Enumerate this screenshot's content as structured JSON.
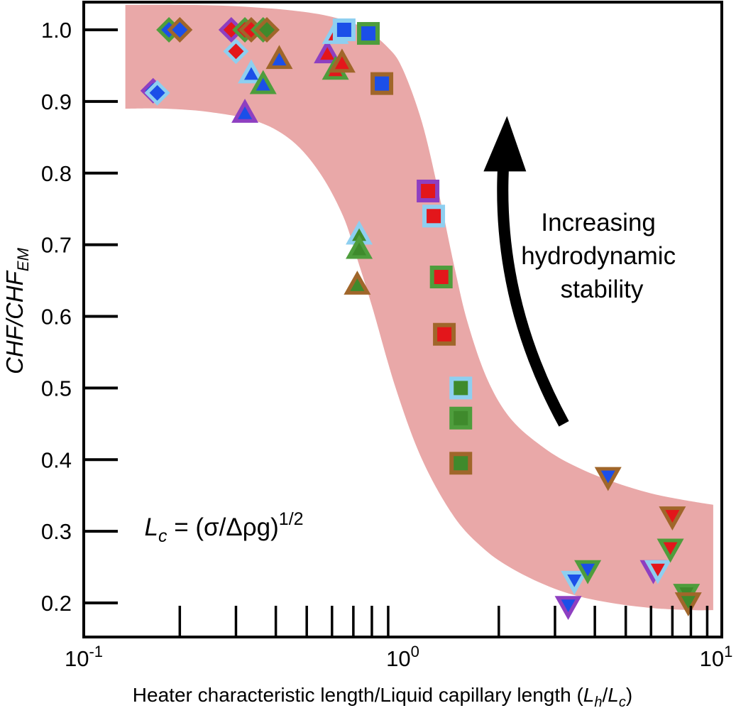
{
  "chart_data": {
    "type": "scatter",
    "x_scale": "log",
    "xlim": [
      0.1,
      10
    ],
    "ylim": [
      0.16,
      1.04
    ],
    "grid": false,
    "legend": "none",
    "colors": {
      "band": "#e9a8a8",
      "purple": "#8e3fc1",
      "lightblue": "#8ecff0",
      "green": "#4e9d3c",
      "brown": "#a0662a",
      "red": "#e3161b",
      "blue": "#1b4fe8",
      "darkgreen": "#3f8a2c"
    },
    "xlabel": {
      "text": "Heater characteristic length/Liquid capillary length (",
      "var1": "L",
      "sub1": "h",
      "slash": "/",
      "var2": "L",
      "sub2": "c",
      "close": ")"
    },
    "ylabel": {
      "part1": "CHF",
      "slash": "/",
      "part2": "CHF",
      "sub": "EM"
    },
    "x_tick_labels": [
      {
        "value": 0.1,
        "base": "10",
        "exp": "-1"
      },
      {
        "value": 1,
        "base": "10",
        "exp": "0"
      },
      {
        "value": 10,
        "base": "10",
        "exp": "1"
      }
    ],
    "x_minor_ticks": [
      0.2,
      0.3,
      0.4,
      0.5,
      0.6,
      0.7,
      0.8,
      0.9,
      2,
      3,
      4,
      5,
      6,
      7,
      8,
      9
    ],
    "y_ticks": [
      0.2,
      0.3,
      0.4,
      0.5,
      0.6,
      0.7,
      0.8,
      0.9,
      1.0
    ],
    "y_tick_labels": [
      "0.2",
      "0.3",
      "0.4",
      "0.5",
      "0.6",
      "0.7",
      "0.8",
      "0.9",
      "1.0"
    ],
    "band": {
      "upper": [
        [
          0.135,
          1.035
        ],
        [
          0.2,
          1.035
        ],
        [
          0.3,
          1.033
        ],
        [
          0.45,
          1.027
        ],
        [
          0.6,
          1.018
        ],
        [
          0.75,
          1.003
        ],
        [
          0.9,
          0.975
        ],
        [
          1.0,
          0.945
        ],
        [
          1.15,
          0.87
        ],
        [
          1.3,
          0.77
        ],
        [
          1.45,
          0.67
        ],
        [
          1.6,
          0.59
        ],
        [
          1.85,
          0.51
        ],
        [
          2.2,
          0.455
        ],
        [
          2.8,
          0.415
        ],
        [
          3.5,
          0.39
        ],
        [
          4.5,
          0.37
        ],
        [
          6,
          0.353
        ],
        [
          8,
          0.342
        ],
        [
          9.4,
          0.337
        ]
      ],
      "lower": [
        [
          9.4,
          0.19
        ],
        [
          8,
          0.19
        ],
        [
          6,
          0.193
        ],
        [
          4.5,
          0.2
        ],
        [
          3.5,
          0.21
        ],
        [
          2.8,
          0.225
        ],
        [
          2.2,
          0.248
        ],
        [
          1.8,
          0.275
        ],
        [
          1.45,
          0.32
        ],
        [
          1.15,
          0.4
        ],
        [
          0.95,
          0.5
        ],
        [
          0.8,
          0.615
        ],
        [
          0.72,
          0.68
        ],
        [
          0.65,
          0.74
        ],
        [
          0.55,
          0.8
        ],
        [
          0.45,
          0.845
        ],
        [
          0.35,
          0.872
        ],
        [
          0.25,
          0.885
        ],
        [
          0.18,
          0.89
        ],
        [
          0.135,
          0.89
        ]
      ]
    },
    "points": [
      {
        "x": 0.165,
        "y": 0.915,
        "shape": "diamond",
        "outline": "purple",
        "fill": "blue"
      },
      {
        "x": 0.17,
        "y": 0.912,
        "shape": "diamond",
        "outline": "lightblue",
        "fill": "blue"
      },
      {
        "x": 0.185,
        "y": 1.0,
        "shape": "diamond",
        "outline": "green",
        "fill": "blue"
      },
      {
        "x": 0.2,
        "y": 1.0,
        "shape": "diamond",
        "outline": "brown",
        "fill": "blue"
      },
      {
        "x": 0.29,
        "y": 1.0,
        "shape": "diamond",
        "outline": "purple",
        "fill": "red"
      },
      {
        "x": 0.3,
        "y": 0.97,
        "shape": "diamond",
        "outline": "lightblue",
        "fill": "red"
      },
      {
        "x": 0.32,
        "y": 1.0,
        "shape": "diamond",
        "outline": "green",
        "fill": "red"
      },
      {
        "x": 0.335,
        "y": 1.0,
        "shape": "diamond",
        "outline": "brown",
        "fill": "red"
      },
      {
        "x": 0.365,
        "y": 1.0,
        "shape": "diamond",
        "outline": "green",
        "fill": "darkgreen"
      },
      {
        "x": 0.375,
        "y": 1.0,
        "shape": "diamond",
        "outline": "brown",
        "fill": "darkgreen"
      },
      {
        "x": 0.32,
        "y": 0.885,
        "shape": "triangle-up",
        "outline": "purple",
        "fill": "blue"
      },
      {
        "x": 0.335,
        "y": 0.94,
        "shape": "triangle-up",
        "outline": "lightblue",
        "fill": "blue"
      },
      {
        "x": 0.365,
        "y": 0.925,
        "shape": "triangle-up",
        "outline": "green",
        "fill": "blue"
      },
      {
        "x": 0.41,
        "y": 0.96,
        "shape": "triangle-up",
        "outline": "brown",
        "fill": "blue"
      },
      {
        "x": 0.58,
        "y": 0.968,
        "shape": "triangle-up",
        "outline": "purple",
        "fill": "red"
      },
      {
        "x": 0.615,
        "y": 0.995,
        "shape": "triangle-up",
        "outline": "lightblue",
        "fill": "red"
      },
      {
        "x": 0.615,
        "y": 0.945,
        "shape": "triangle-up",
        "outline": "green",
        "fill": "red"
      },
      {
        "x": 0.645,
        "y": 0.955,
        "shape": "triangle-up",
        "outline": "brown",
        "fill": "red"
      },
      {
        "x": 0.73,
        "y": 0.715,
        "shape": "triangle-up",
        "outline": "lightblue",
        "fill": "darkgreen"
      },
      {
        "x": 0.73,
        "y": 0.695,
        "shape": "triangle-up",
        "outline": "green",
        "fill": "darkgreen"
      },
      {
        "x": 0.72,
        "y": 0.645,
        "shape": "triangle-up",
        "outline": "brown",
        "fill": "darkgreen"
      },
      {
        "x": 0.655,
        "y": 1.0,
        "shape": "square",
        "outline": "lightblue",
        "fill": "blue"
      },
      {
        "x": 0.78,
        "y": 0.995,
        "shape": "square",
        "outline": "green",
        "fill": "blue"
      },
      {
        "x": 0.86,
        "y": 0.925,
        "shape": "square",
        "outline": "brown",
        "fill": "blue"
      },
      {
        "x": 1.2,
        "y": 0.775,
        "shape": "square",
        "outline": "purple",
        "fill": "red"
      },
      {
        "x": 1.25,
        "y": 0.74,
        "shape": "square",
        "outline": "lightblue",
        "fill": "red"
      },
      {
        "x": 1.32,
        "y": 0.655,
        "shape": "square",
        "outline": "green",
        "fill": "red"
      },
      {
        "x": 1.35,
        "y": 0.575,
        "shape": "square",
        "outline": "brown",
        "fill": "red"
      },
      {
        "x": 1.52,
        "y": 0.5,
        "shape": "square",
        "outline": "lightblue",
        "fill": "darkgreen"
      },
      {
        "x": 1.52,
        "y": 0.458,
        "shape": "square",
        "outline": "green",
        "fill": "darkgreen"
      },
      {
        "x": 1.52,
        "y": 0.395,
        "shape": "square",
        "outline": "brown",
        "fill": "darkgreen"
      },
      {
        "x": 3.3,
        "y": 0.195,
        "shape": "triangle-down",
        "outline": "purple",
        "fill": "blue"
      },
      {
        "x": 3.45,
        "y": 0.23,
        "shape": "triangle-down",
        "outline": "lightblue",
        "fill": "blue"
      },
      {
        "x": 3.8,
        "y": 0.245,
        "shape": "triangle-down",
        "outline": "green",
        "fill": "blue"
      },
      {
        "x": 4.4,
        "y": 0.375,
        "shape": "triangle-down",
        "outline": "brown",
        "fill": "blue"
      },
      {
        "x": 6.1,
        "y": 0.245,
        "shape": "triangle-down",
        "outline": "purple",
        "fill": "red"
      },
      {
        "x": 6.3,
        "y": 0.245,
        "shape": "triangle-down",
        "outline": "lightblue",
        "fill": "red"
      },
      {
        "x": 6.9,
        "y": 0.275,
        "shape": "triangle-down",
        "outline": "green",
        "fill": "red"
      },
      {
        "x": 7.0,
        "y": 0.32,
        "shape": "triangle-down",
        "outline": "brown",
        "fill": "red"
      },
      {
        "x": 7.75,
        "y": 0.212,
        "shape": "triangle-down",
        "outline": "green",
        "fill": "darkgreen"
      },
      {
        "x": 7.85,
        "y": 0.2,
        "shape": "triangle-down",
        "outline": "brown",
        "fill": "darkgreen"
      }
    ],
    "annotations": {
      "arrow_label": [
        "Increasing",
        "hydrodynamic",
        "stability"
      ],
      "arrow": {
        "from": [
          3.2,
          0.45
        ],
        "to": [
          2.1,
          0.85
        ],
        "bend": "left"
      },
      "formula": {
        "var": "L",
        "sub": "c",
        "middle": " = (σ/Δρg)",
        "exp": "1/2",
        "x": 0.155,
        "y": 0.3
      }
    }
  }
}
